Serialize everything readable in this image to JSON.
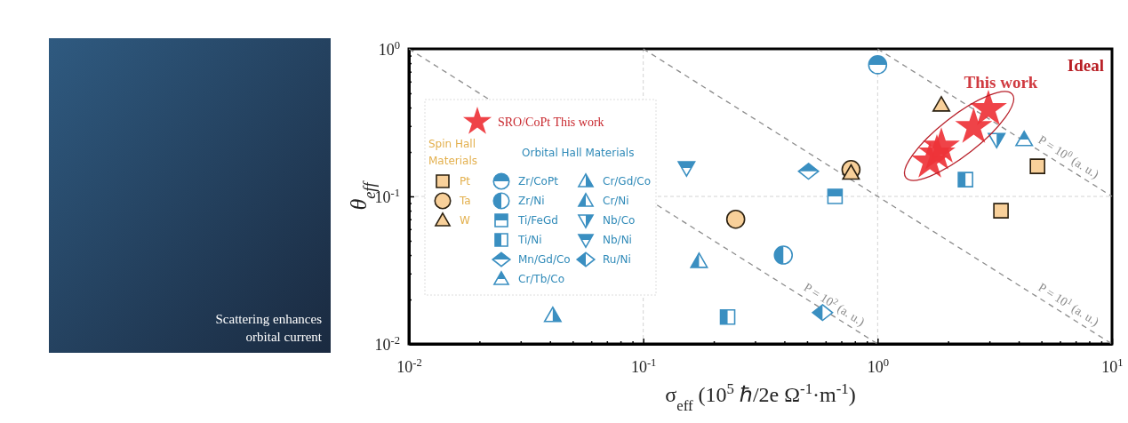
{
  "chart_data": {
    "type": "scatter",
    "xlabel": "σ$_{eff}$ (10$^{5}$ ℏ/2e Ω$^{-1}$·m$^{-1}$)",
    "ylabel": "θ$_{eff}$",
    "log": "xy",
    "grid": true,
    "legend": "top left",
    "xlim": [
      0.01,
      10
    ],
    "ylim": [
      0.01,
      1
    ],
    "xticks": [
      {
        "value": 0.01,
        "label": "10$^{-2}$"
      },
      {
        "value": 0.02,
        "label": null
      },
      {
        "value": 0.03,
        "label": null
      },
      {
        "value": 0.04,
        "label": null
      },
      {
        "value": 0.05,
        "label": null
      },
      {
        "value": 0.06,
        "label": null
      },
      {
        "value": 0.07,
        "label": null
      },
      {
        "value": 0.08,
        "label": null
      },
      {
        "value": 0.09,
        "label": null
      },
      {
        "value": 0.1,
        "label": "10$^{-1}$"
      },
      {
        "value": 0.2,
        "label": null
      },
      {
        "value": 0.3,
        "label": null
      },
      {
        "value": 0.4,
        "label": null
      },
      {
        "value": 0.5,
        "label": null
      },
      {
        "value": 0.6,
        "label": null
      },
      {
        "value": 0.7,
        "label": null
      },
      {
        "value": 0.8,
        "label": null
      },
      {
        "value": 0.9,
        "label": null
      },
      {
        "value": 1,
        "label": "10$^{0}$"
      },
      {
        "value": 2,
        "label": null
      },
      {
        "value": 3,
        "label": null
      },
      {
        "value": 4,
        "label": null
      },
      {
        "value": 5,
        "label": null
      },
      {
        "value": 6,
        "label": null
      },
      {
        "value": 7,
        "label": null
      },
      {
        "value": 8,
        "label": null
      },
      {
        "value": 9,
        "label": null
      },
      {
        "value": 10,
        "label": "10$^{1}$"
      }
    ],
    "yticks": [
      {
        "value": 0.01,
        "label": "10$^{-2}$"
      },
      {
        "value": 0.02,
        "label": null
      },
      {
        "value": 0.03,
        "label": null
      },
      {
        "value": 0.04,
        "label": null
      },
      {
        "value": 0.05,
        "label": null
      },
      {
        "value": 0.06,
        "label": null
      },
      {
        "value": 0.07,
        "label": null
      },
      {
        "value": 0.08,
        "label": null
      },
      {
        "value": 0.09,
        "label": null
      },
      {
        "value": 0.1,
        "label": "10$^{-1}$"
      },
      {
        "value": 0.2,
        "label": null
      },
      {
        "value": 0.3,
        "label": null
      },
      {
        "value": 0.4,
        "label": null
      },
      {
        "value": 0.5,
        "label": null
      },
      {
        "value": 0.6,
        "label": null
      },
      {
        "value": 0.7,
        "label": null
      },
      {
        "value": 0.8,
        "label": null
      },
      {
        "value": 0.9,
        "label": null
      },
      {
        "value": 1,
        "label": "10$^{0}$"
      }
    ],
    "annotations": [
      "Spin Hall Materials",
      "Orbital Hall Materials",
      "This work",
      "Ideal",
      "Scattering enhances orbital current"
    ],
    "series": [
      {
        "name": "SRO/CoPt This work",
        "marker": "star",
        "color": "#ee3338",
        "x": [
          2.97,
          2.57,
          1.87,
          1.79,
          1.67
        ],
        "values": [
          0.39,
          0.295,
          0.217,
          0.195,
          0.172
        ]
      },
      {
        "name": "Pt",
        "marker": "square",
        "color": "#f8d09a",
        "x": [
          4.81,
          3.36
        ],
        "values": [
          0.16,
          0.08
        ]
      },
      {
        "name": "Ta",
        "marker": "circle",
        "color": "#f8d09a",
        "x": [
          0.248,
          0.77
        ],
        "values": [
          0.07,
          0.152
        ]
      },
      {
        "name": "W",
        "marker": "triangle",
        "color": "#f8d09a",
        "x": [
          1.87,
          0.77
        ],
        "values": [
          0.417,
          0.144
        ]
      },
      {
        "name": "Zr/CoPt",
        "marker": "circle",
        "color": "#3a8fc1",
        "x": [
          1.0
        ],
        "values": [
          0.78
        ]
      },
      {
        "name": "Zr/Ni",
        "marker": "circle",
        "color": "#3a8fc1",
        "x": [
          0.396
        ],
        "values": [
          0.04
        ]
      },
      {
        "name": "Ti/FeGd",
        "marker": "square",
        "color": "#3a8fc1",
        "x": [
          0.658
        ],
        "values": [
          0.1
        ]
      },
      {
        "name": "Ti/Ni",
        "marker": "square",
        "color": "#3a8fc1",
        "x": [
          2.37,
          0.229
        ],
        "values": [
          0.13,
          0.0152
        ]
      },
      {
        "name": "Mn/Gd/Co",
        "marker": "diamond",
        "color": "#3a8fc1",
        "x": [
          0.507
        ],
        "values": [
          0.148
        ]
      },
      {
        "name": "Cr/Tb/Co",
        "marker": "triangle",
        "color": "#3a8fc1",
        "x": [
          4.22
        ],
        "values": [
          0.243
        ]
      },
      {
        "name": "Cr/Gd/Co",
        "marker": "triangle",
        "color": "#3a8fc1",
        "x": [
          0.0411
        ],
        "values": [
          0.0156
        ]
      },
      {
        "name": "Cr/Ni",
        "marker": "triangle",
        "color": "#3a8fc1",
        "x": [
          0.173
        ],
        "values": [
          0.0363
        ]
      },
      {
        "name": "Nb/Co",
        "marker": "triangle-down",
        "color": "#3a8fc1",
        "x": [
          3.22
        ],
        "values": [
          0.243
        ]
      },
      {
        "name": "Nb/Ni",
        "marker": "triangle-down",
        "color": "#3a8fc1",
        "x": [
          0.153
        ],
        "values": [
          0.156
        ]
      },
      {
        "name": "Ru/Ni",
        "marker": "diamond",
        "color": "#3a8fc1",
        "x": [
          0.582
        ],
        "values": [
          0.0163
        ]
      },
      {
        "name": "P = 10$^{0}$ (a. u.)",
        "type": "line",
        "line_style": "dashed",
        "color": "#8c8c8c",
        "x": [
          1,
          10
        ],
        "values": [
          1,
          0.1
        ]
      },
      {
        "name": "P = 10$^{1}$ (a. u.)",
        "type": "line",
        "line_style": "dashed",
        "color": "#8c8c8c",
        "x": [
          0.1,
          10
        ],
        "values": [
          1,
          0.01
        ]
      },
      {
        "name": "P = 10$^{2}$ (a. u.)",
        "type": "line",
        "line_style": "dashed",
        "color": "#8c8c8c",
        "x": [
          0.01,
          1
        ],
        "values": [
          1,
          0.01
        ]
      }
    ]
  }
}
